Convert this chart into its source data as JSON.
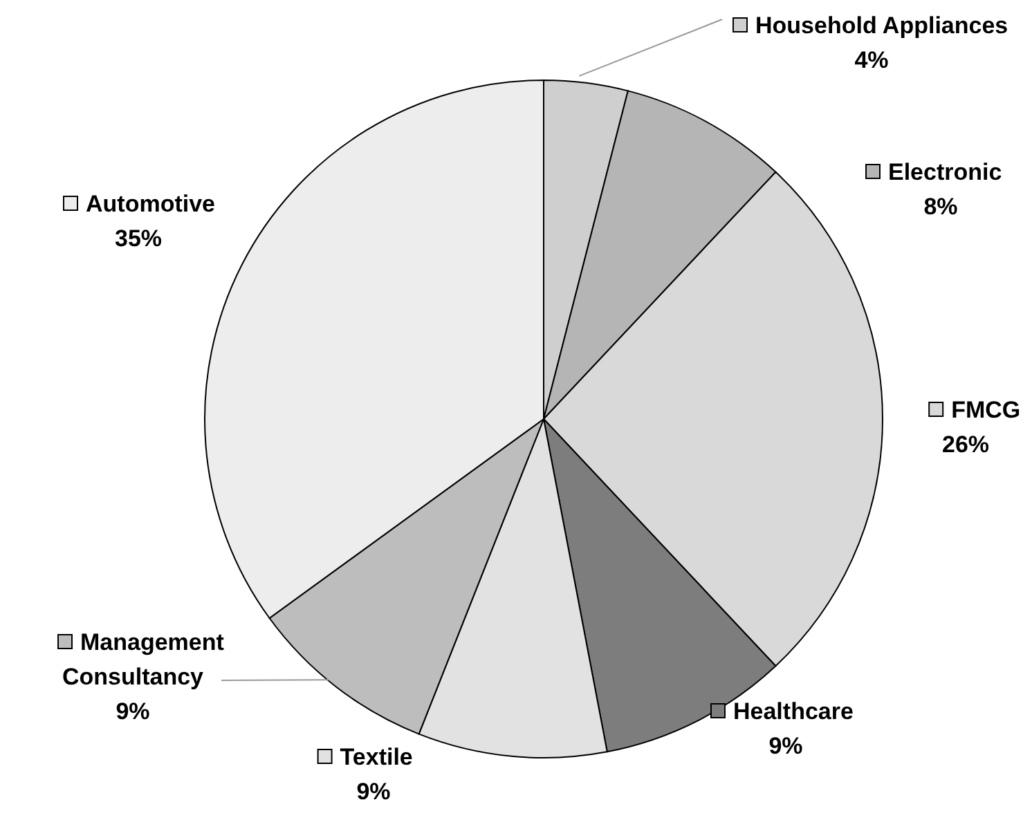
{
  "chart_data": {
    "type": "pie",
    "categories": [
      "Household Appliances",
      "Electronic",
      "FMCG",
      "Healthcare",
      "Textile",
      "Management Consultancy",
      "Automotive"
    ],
    "values": [
      4,
      8,
      26,
      9,
      9,
      9,
      35
    ],
    "value_labels": [
      "4%",
      "8%",
      "26%",
      "9%",
      "9%",
      "9%",
      "35%"
    ],
    "legend": "right",
    "colors": [
      "#cfcfcf",
      "#b5b5b5",
      "#d9d9d9",
      "#7d7d7d",
      "#e2e2e2",
      "#bdbdbd",
      "#ededed"
    ]
  }
}
